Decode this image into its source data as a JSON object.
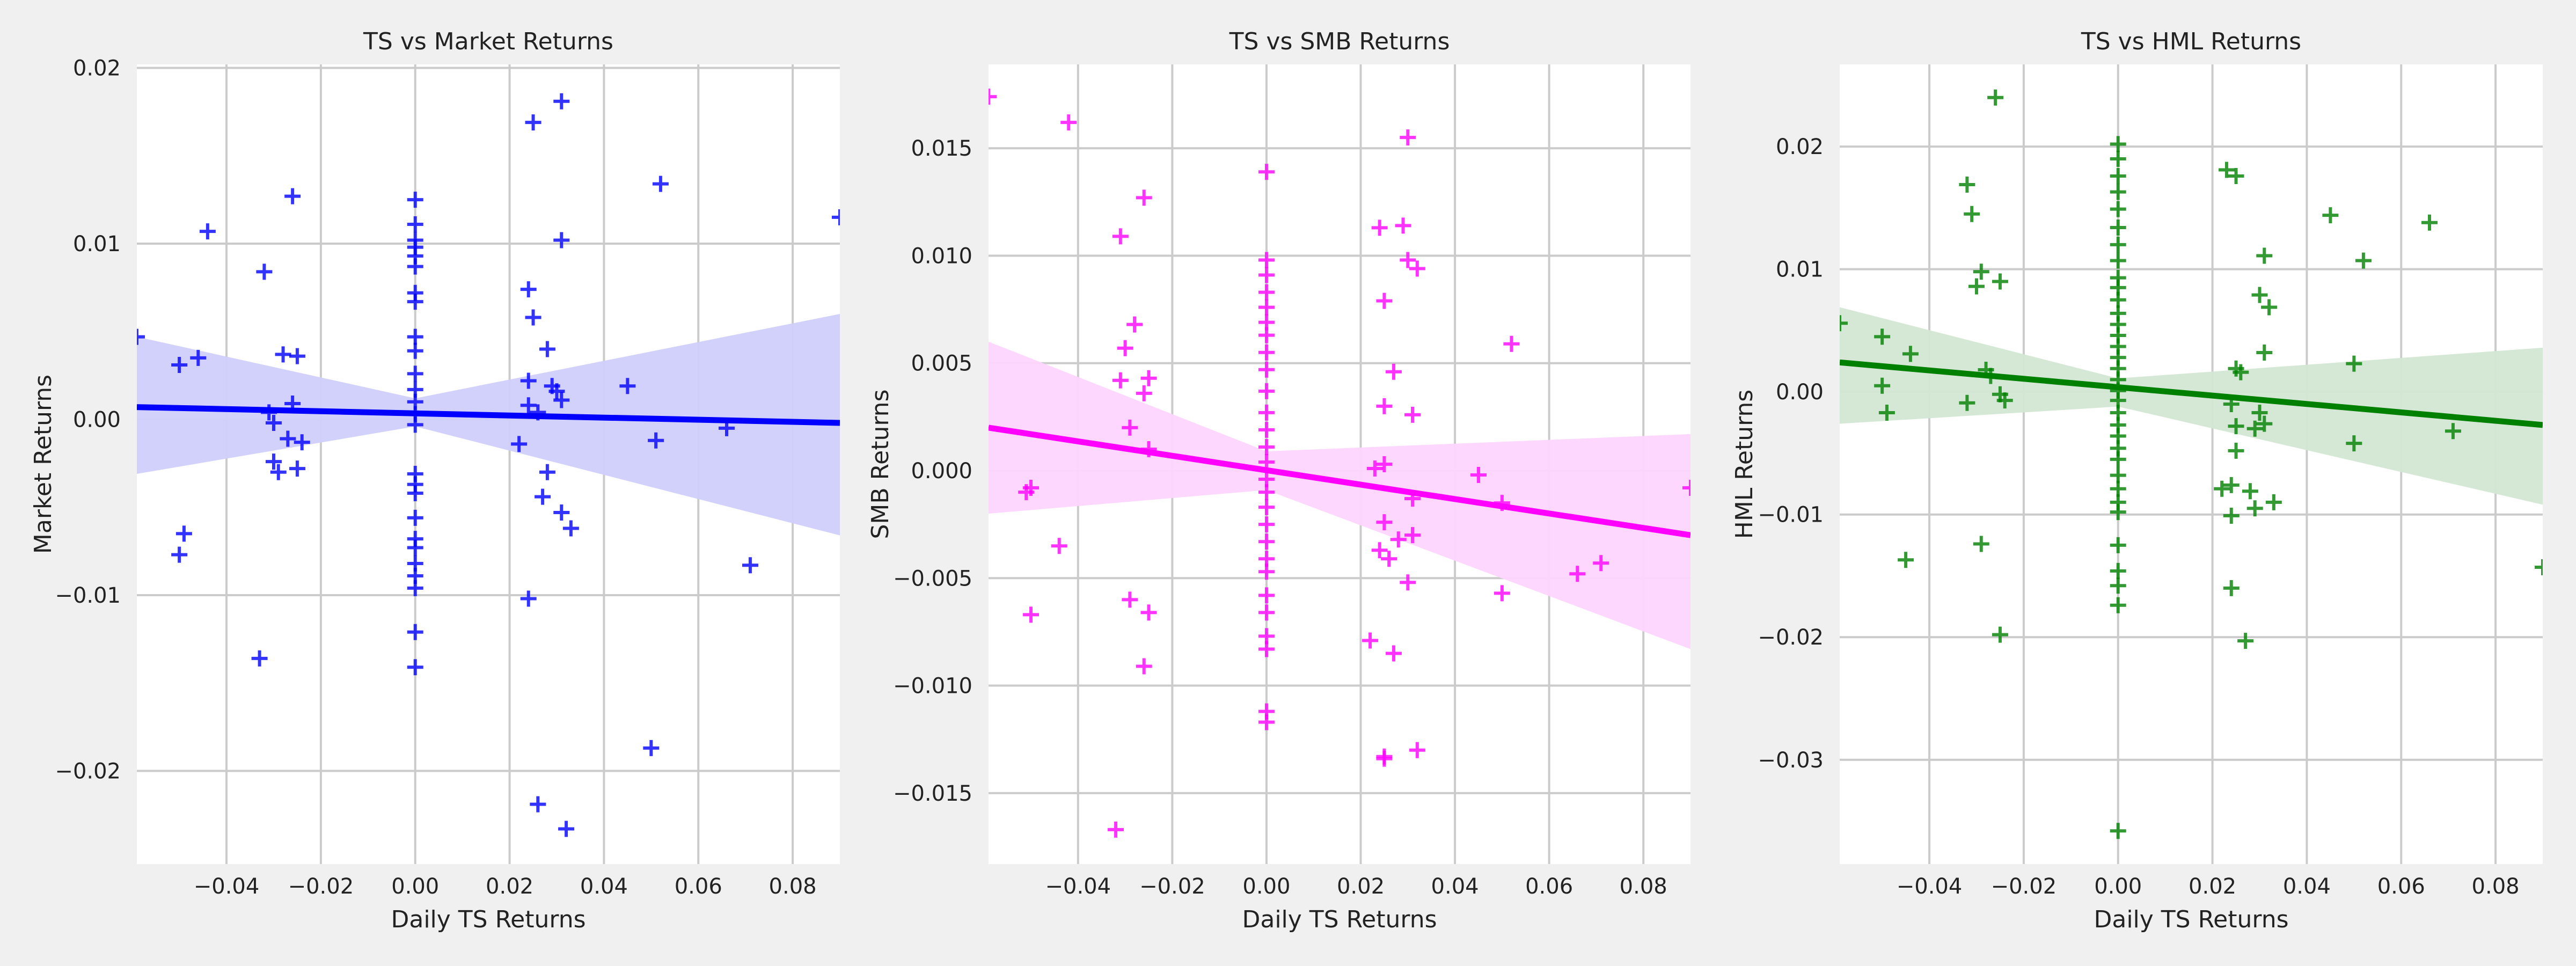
{
  "chart_data": [
    {
      "type": "scatter",
      "title": "TS vs Market Returns",
      "xlabel": "Daily TS Returns",
      "ylabel": "Market Returns",
      "xlim": [
        -0.059,
        0.09
      ],
      "ylim": [
        -0.0253,
        0.0202
      ],
      "xticks": [
        -0.04,
        -0.02,
        0.0,
        0.02,
        0.04,
        0.06,
        0.08
      ],
      "xtick_labels": [
        "−0.04",
        "−0.02",
        "0.00",
        "0.02",
        "0.04",
        "0.06",
        "0.08"
      ],
      "yticks": [
        -0.02,
        -0.01,
        0.0,
        0.01,
        0.02
      ],
      "ytick_labels": [
        "−0.02",
        "−0.01",
        "0.00",
        "0.01",
        "0.02"
      ],
      "grid": true,
      "color": "#0000ff",
      "band_color": "#cfcffb",
      "marker": "+",
      "regression": {
        "y_at_xmin": 0.0007,
        "y_at_xmax": -0.0002
      },
      "ci_band": {
        "upper": [
          [
            -0.059,
            0.0047
          ],
          [
            0.0,
            0.0012
          ],
          [
            0.09,
            0.006
          ]
        ],
        "lower": [
          [
            -0.059,
            -0.0031
          ],
          [
            0.0,
            -0.0004
          ],
          [
            0.09,
            -0.0066
          ]
        ]
      },
      "points": [
        [
          -0.059,
          0.0047
        ],
        [
          -0.05,
          0.0031
        ],
        [
          -0.044,
          0.0107
        ],
        [
          -0.046,
          0.0035
        ],
        [
          -0.049,
          -0.0065
        ],
        [
          -0.05,
          -0.0077
        ],
        [
          -0.032,
          0.0084
        ],
        [
          -0.026,
          0.0127
        ],
        [
          -0.028,
          0.0037
        ],
        [
          -0.025,
          0.0036
        ],
        [
          -0.031,
          0.0004
        ],
        [
          -0.03,
          -0.0002
        ],
        [
          -0.026,
          0.0009
        ],
        [
          -0.03,
          -0.0024
        ],
        [
          -0.029,
          -0.003
        ],
        [
          -0.027,
          -0.0011
        ],
        [
          -0.025,
          -0.0028
        ],
        [
          -0.024,
          -0.0013
        ],
        [
          -0.033,
          -0.0136
        ],
        [
          0.0,
          0.0125
        ],
        [
          0.0,
          0.0111
        ],
        [
          0.0,
          0.0102
        ],
        [
          0.0,
          0.0098
        ],
        [
          0.0,
          0.0093
        ],
        [
          0.0,
          0.0087
        ],
        [
          0.0,
          0.0072
        ],
        [
          0.0,
          0.0067
        ],
        [
          0.0,
          0.0047
        ],
        [
          0.0,
          0.0039
        ],
        [
          0.0,
          0.0026
        ],
        [
          0.0,
          0.0017
        ],
        [
          0.0,
          0.001
        ],
        [
          0.0,
          0.0003
        ],
        [
          0.0,
          -0.0003
        ],
        [
          0.0,
          -0.0031
        ],
        [
          0.0,
          -0.0037
        ],
        [
          0.0,
          -0.0042
        ],
        [
          0.0,
          -0.0056
        ],
        [
          0.0,
          -0.0068
        ],
        [
          0.0,
          -0.0073
        ],
        [
          0.0,
          -0.0082
        ],
        [
          0.0,
          -0.0089
        ],
        [
          0.0,
          -0.0096
        ],
        [
          0.0,
          -0.0121
        ],
        [
          0.0,
          -0.0141
        ],
        [
          0.025,
          0.0169
        ],
        [
          0.031,
          0.0181
        ],
        [
          0.031,
          0.0102
        ],
        [
          0.024,
          0.0074
        ],
        [
          0.025,
          0.0058
        ],
        [
          0.028,
          0.004
        ],
        [
          0.024,
          0.0022
        ],
        [
          0.029,
          0.0019
        ],
        [
          0.03,
          0.0016
        ],
        [
          0.024,
          0.0008
        ],
        [
          0.031,
          0.0011
        ],
        [
          0.026,
          0.0004
        ],
        [
          0.022,
          -0.0014
        ],
        [
          0.028,
          -0.003
        ],
        [
          0.027,
          -0.0044
        ],
        [
          0.031,
          -0.0053
        ],
        [
          0.033,
          -0.0062
        ],
        [
          0.024,
          -0.0102
        ],
        [
          0.026,
          -0.0219
        ],
        [
          0.032,
          -0.0233
        ],
        [
          0.045,
          0.0019
        ],
        [
          0.051,
          -0.0012
        ],
        [
          0.052,
          0.0134
        ],
        [
          0.05,
          -0.0187
        ],
        [
          0.066,
          -0.0005
        ],
        [
          0.071,
          -0.0083
        ],
        [
          0.09,
          0.0115
        ]
      ]
    },
    {
      "type": "scatter",
      "title": "TS vs SMB Returns",
      "xlabel": "Daily TS Returns",
      "ylabel": "SMB Returns",
      "xlim": [
        -0.059,
        0.09
      ],
      "ylim": [
        -0.0183,
        0.0189
      ],
      "xticks": [
        -0.04,
        -0.02,
        0.0,
        0.02,
        0.04,
        0.06,
        0.08
      ],
      "xtick_labels": [
        "−0.04",
        "−0.02",
        "0.00",
        "0.02",
        "0.04",
        "0.06",
        "0.08"
      ],
      "yticks": [
        -0.015,
        -0.01,
        -0.005,
        0.0,
        0.005,
        0.01,
        0.015
      ],
      "ytick_labels": [
        "−0.015",
        "−0.010",
        "−0.005",
        "0.000",
        "0.005",
        "0.010",
        "0.015"
      ],
      "grid": true,
      "color": "#ff00ff",
      "band_color": "#fdd5fd",
      "marker": "+",
      "regression": {
        "y_at_xmin": 0.002,
        "y_at_xmax": -0.003
      },
      "ci_band": {
        "upper": [
          [
            -0.059,
            0.006
          ],
          [
            0.0,
            0.0009
          ],
          [
            0.09,
            0.0017
          ]
        ],
        "lower": [
          [
            -0.059,
            -0.002
          ],
          [
            0.0,
            -0.0009
          ],
          [
            0.09,
            -0.0083
          ]
        ]
      },
      "points": [
        [
          -0.059,
          0.0174
        ],
        [
          -0.042,
          0.0162
        ],
        [
          -0.031,
          0.0109
        ],
        [
          -0.026,
          0.0127
        ],
        [
          -0.028,
          0.0068
        ],
        [
          -0.03,
          0.0057
        ],
        [
          -0.031,
          0.0042
        ],
        [
          -0.025,
          0.0043
        ],
        [
          -0.026,
          0.0036
        ],
        [
          -0.029,
          0.002
        ],
        [
          -0.025,
          0.001
        ],
        [
          -0.05,
          -0.0008
        ],
        [
          -0.051,
          -0.001
        ],
        [
          -0.044,
          -0.0035
        ],
        [
          -0.029,
          -0.006
        ],
        [
          -0.025,
          -0.0066
        ],
        [
          -0.05,
          -0.0067
        ],
        [
          -0.026,
          -0.0091
        ],
        [
          -0.032,
          -0.0167
        ],
        [
          0.0,
          0.0139
        ],
        [
          0.0,
          0.0098
        ],
        [
          0.0,
          0.0091
        ],
        [
          0.0,
          0.0083
        ],
        [
          0.0,
          0.0076
        ],
        [
          0.0,
          0.0069
        ],
        [
          0.0,
          0.0063
        ],
        [
          0.0,
          0.0055
        ],
        [
          0.0,
          0.0047
        ],
        [
          0.0,
          0.0037
        ],
        [
          0.0,
          0.0027
        ],
        [
          0.0,
          0.0019
        ],
        [
          0.0,
          0.0011
        ],
        [
          0.0,
          0.0004
        ],
        [
          0.0,
          -0.0004
        ],
        [
          0.0,
          -0.001
        ],
        [
          0.0,
          -0.0017
        ],
        [
          0.0,
          -0.0025
        ],
        [
          0.0,
          -0.0033
        ],
        [
          0.0,
          -0.0041
        ],
        [
          0.0,
          -0.0047
        ],
        [
          0.0,
          -0.0058
        ],
        [
          0.0,
          -0.0066
        ],
        [
          0.0,
          -0.0077
        ],
        [
          0.0,
          -0.0083
        ],
        [
          0.0,
          -0.0112
        ],
        [
          0.0,
          -0.0117
        ],
        [
          0.03,
          0.0155
        ],
        [
          0.024,
          0.0113
        ],
        [
          0.029,
          0.0114
        ],
        [
          0.03,
          0.0098
        ],
        [
          0.032,
          0.0094
        ],
        [
          0.025,
          0.0079
        ],
        [
          0.027,
          0.0046
        ],
        [
          0.025,
          0.003
        ],
        [
          0.031,
          0.0026
        ],
        [
          0.025,
          0.0003
        ],
        [
          0.023,
          0.0001
        ],
        [
          0.031,
          -0.0013
        ],
        [
          0.025,
          -0.0024
        ],
        [
          0.028,
          -0.0032
        ],
        [
          0.031,
          -0.003
        ],
        [
          0.024,
          -0.0037
        ],
        [
          0.026,
          -0.0041
        ],
        [
          0.03,
          -0.0052
        ],
        [
          0.022,
          -0.0079
        ],
        [
          0.027,
          -0.0085
        ],
        [
          0.025,
          -0.0133
        ],
        [
          0.025,
          -0.0134
        ],
        [
          0.032,
          -0.013
        ],
        [
          0.045,
          -0.0002
        ],
        [
          0.052,
          0.0059
        ],
        [
          0.05,
          -0.0015
        ],
        [
          0.05,
          -0.0057
        ],
        [
          0.066,
          -0.0048
        ],
        [
          0.071,
          -0.0043
        ],
        [
          0.09,
          -0.0008
        ]
      ]
    },
    {
      "type": "scatter",
      "title": "TS vs HML Returns",
      "xlabel": "Daily TS Returns",
      "ylabel": "HML Returns",
      "xlim": [
        -0.059,
        0.09
      ],
      "ylim": [
        -0.0385,
        0.0267
      ],
      "xticks": [
        -0.04,
        -0.02,
        0.0,
        0.02,
        0.04,
        0.06,
        0.08
      ],
      "xtick_labels": [
        "−0.04",
        "−0.02",
        "0.00",
        "0.02",
        "0.04",
        "0.06",
        "0.08"
      ],
      "yticks": [
        -0.03,
        -0.02,
        -0.01,
        0.0,
        0.01,
        0.02
      ],
      "ytick_labels": [
        "−0.03",
        "−0.02",
        "−0.01",
        "0.00",
        "0.01",
        "0.02"
      ],
      "grid": true,
      "color": "#008000",
      "band_color": "#d3e7d3",
      "marker": "+",
      "regression": {
        "y_at_xmin": 0.0024,
        "y_at_xmax": -0.0027
      },
      "ci_band": {
        "upper": [
          [
            -0.059,
            0.0069
          ],
          [
            0.0,
            0.0011
          ],
          [
            0.09,
            0.0036
          ]
        ],
        "lower": [
          [
            -0.059,
            -0.0026
          ],
          [
            0.0,
            -0.0012
          ],
          [
            0.09,
            -0.0092
          ]
        ]
      },
      "points": [
        [
          -0.059,
          0.0056
        ],
        [
          -0.05,
          0.0045
        ],
        [
          -0.05,
          0.0005
        ],
        [
          -0.049,
          -0.0017
        ],
        [
          -0.044,
          0.0031
        ],
        [
          -0.045,
          -0.0137
        ],
        [
          -0.026,
          0.024
        ],
        [
          -0.032,
          0.0169
        ],
        [
          -0.031,
          0.0145
        ],
        [
          -0.029,
          0.0098
        ],
        [
          -0.025,
          0.009
        ],
        [
          -0.03,
          0.0086
        ],
        [
          -0.028,
          0.0018
        ],
        [
          -0.027,
          0.0013
        ],
        [
          -0.025,
          -0.0002
        ],
        [
          -0.024,
          -0.0007
        ],
        [
          -0.032,
          -0.0009
        ],
        [
          -0.029,
          -0.0124
        ],
        [
          -0.025,
          -0.0198
        ],
        [
          0.0,
          0.0202
        ],
        [
          0.0,
          0.019
        ],
        [
          0.0,
          0.0176
        ],
        [
          0.0,
          0.0163
        ],
        [
          0.0,
          0.0149
        ],
        [
          0.0,
          0.0134
        ],
        [
          0.0,
          0.012
        ],
        [
          0.0,
          0.0107
        ],
        [
          0.0,
          0.0093
        ],
        [
          0.0,
          0.0085
        ],
        [
          0.0,
          0.0075
        ],
        [
          0.0,
          0.0064
        ],
        [
          0.0,
          0.0055
        ],
        [
          0.0,
          0.0046
        ],
        [
          0.0,
          0.0037
        ],
        [
          0.0,
          0.0028
        ],
        [
          0.0,
          0.0019
        ],
        [
          0.0,
          0.001
        ],
        [
          0.0,
          0.0001
        ],
        [
          0.0,
          -0.0007
        ],
        [
          0.0,
          -0.0017
        ],
        [
          0.0,
          -0.0027
        ],
        [
          0.0,
          -0.0036
        ],
        [
          0.0,
          -0.0046
        ],
        [
          0.0,
          -0.0055
        ],
        [
          0.0,
          -0.0068
        ],
        [
          0.0,
          -0.0079
        ],
        [
          0.0,
          -0.009
        ],
        [
          0.0,
          -0.0098
        ],
        [
          0.0,
          -0.0125
        ],
        [
          0.0,
          -0.0146
        ],
        [
          0.0,
          -0.0158
        ],
        [
          0.0,
          -0.0174
        ],
        [
          0.0,
          -0.0358
        ],
        [
          0.023,
          0.0181
        ],
        [
          0.025,
          0.0176
        ],
        [
          0.031,
          0.0111
        ],
        [
          0.03,
          0.0079
        ],
        [
          0.032,
          0.0069
        ],
        [
          0.031,
          0.0032
        ],
        [
          0.025,
          0.0019
        ],
        [
          0.026,
          0.0016
        ],
        [
          0.024,
          -0.001
        ],
        [
          0.03,
          -0.0017
        ],
        [
          0.025,
          -0.0028
        ],
        [
          0.029,
          -0.003
        ],
        [
          0.031,
          -0.0026
        ],
        [
          0.025,
          -0.0048
        ],
        [
          0.022,
          -0.0079
        ],
        [
          0.024,
          -0.0076
        ],
        [
          0.028,
          -0.0081
        ],
        [
          0.033,
          -0.009
        ],
        [
          0.029,
          -0.0095
        ],
        [
          0.024,
          -0.0101
        ],
        [
          0.024,
          -0.016
        ],
        [
          0.027,
          -0.0203
        ],
        [
          0.045,
          0.0144
        ],
        [
          0.052,
          0.0107
        ],
        [
          0.05,
          0.0023
        ],
        [
          0.05,
          -0.0042
        ],
        [
          0.066,
          0.0138
        ],
        [
          0.071,
          -0.0032
        ],
        [
          0.09,
          -0.0143
        ]
      ]
    }
  ]
}
